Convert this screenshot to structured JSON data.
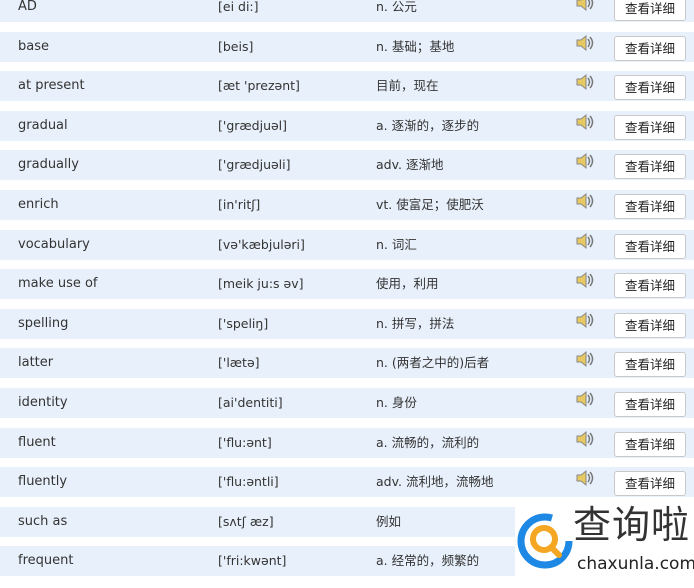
{
  "rows": [
    {
      "word": "AD",
      "phonetic": "[ei di:]",
      "meaning": "n. 公元"
    },
    {
      "word": "base",
      "phonetic": "[beis]",
      "meaning": "n. 基础；基地"
    },
    {
      "word": "at present",
      "phonetic": "[æt 'prezənt]",
      "meaning": "目前，现在"
    },
    {
      "word": "gradual",
      "phonetic": "['grædjuəl]",
      "meaning": "a. 逐渐的，逐步的"
    },
    {
      "word": "gradually",
      "phonetic": "['grædjuəli]",
      "meaning": "adv. 逐渐地"
    },
    {
      "word": "enrich",
      "phonetic": "[in'ritʃ]",
      "meaning": "vt. 使富足；使肥沃"
    },
    {
      "word": "vocabulary",
      "phonetic": "[və'kæbjuləri]",
      "meaning": "n. 词汇"
    },
    {
      "word": "make use of",
      "phonetic": "[meik ju:s əv]",
      "meaning": "使用，利用"
    },
    {
      "word": "spelling",
      "phonetic": "['speliŋ]",
      "meaning": "n. 拼写，拼法"
    },
    {
      "word": "latter",
      "phonetic": "['lætə]",
      "meaning": "n. (两者之中的)后者"
    },
    {
      "word": "identity",
      "phonetic": "[ai'dentiti]",
      "meaning": "n. 身份"
    },
    {
      "word": "fluent",
      "phonetic": "['flu:ənt]",
      "meaning": "a. 流畅的，流利的"
    },
    {
      "word": "fluently",
      "phonetic": "['flu:əntli]",
      "meaning": "adv. 流利地，流畅地"
    },
    {
      "word": "such as",
      "phonetic": "[sʌtʃ æz]",
      "meaning": "例如"
    },
    {
      "word": "frequent",
      "phonetic": "['fri:kwənt]",
      "meaning": "a. 经常的，频繁的"
    }
  ],
  "button_label": "查看详细",
  "speaker_icon": "speaker-icon",
  "watermark": {
    "title": "查询啦",
    "domain": "chaxunla.com"
  },
  "colors": {
    "row_bg": "#e8f1fb",
    "logo_orange": "#f5a623",
    "logo_blue": "#1e88e5"
  }
}
